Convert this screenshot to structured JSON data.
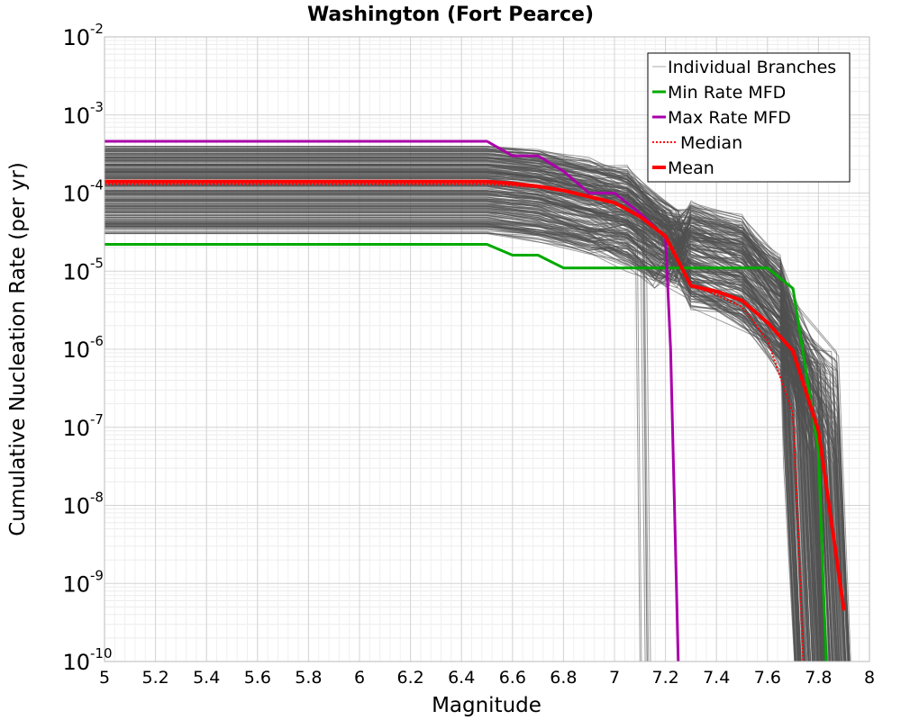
{
  "chart_data": {
    "type": "line",
    "title": "Washington (Fort Pearce)",
    "xlabel": "Magnitude",
    "ylabel": "Cumulative Nucleation Rate (per yr)",
    "xlim": [
      5,
      8
    ],
    "ylim": [
      1e-10,
      0.01
    ],
    "y_scale": "log",
    "grid": true,
    "legend_position": "top-right",
    "x_ticks": [
      "5",
      "5.2",
      "5.4",
      "5.6",
      "5.8",
      "6",
      "6.2",
      "6.4",
      "6.6",
      "6.8",
      "7",
      "7.2",
      "7.4",
      "7.6",
      "7.8",
      "8"
    ],
    "y_ticks": [
      {
        "base": "10",
        "exp": "-2",
        "value": 0.01
      },
      {
        "base": "10",
        "exp": "-3",
        "value": 0.001
      },
      {
        "base": "10",
        "exp": "-4",
        "value": 0.0001
      },
      {
        "base": "10",
        "exp": "-5",
        "value": 1e-05
      },
      {
        "base": "10",
        "exp": "-6",
        "value": 1e-06
      },
      {
        "base": "10",
        "exp": "-7",
        "value": 1e-07
      },
      {
        "base": "10",
        "exp": "-8",
        "value": 1e-08
      },
      {
        "base": "10",
        "exp": "-9",
        "value": 1e-09
      },
      {
        "base": "10",
        "exp": "-10",
        "value": 1e-10
      }
    ],
    "series": [
      {
        "name": "Min Rate MFD",
        "color": "#00aa00",
        "style": "solid",
        "x": [
          5.0,
          6.5,
          6.6,
          6.7,
          6.8,
          7.0,
          7.2,
          7.4,
          7.6,
          7.7,
          7.8,
          7.83
        ],
        "y": [
          2.2e-05,
          2.2e-05,
          1.6e-05,
          1.6e-05,
          1.1e-05,
          1.1e-05,
          1.1e-05,
          1.1e-05,
          1.1e-05,
          6e-06,
          5e-08,
          1e-10
        ]
      },
      {
        "name": "Max Rate MFD",
        "color": "#aa00aa",
        "style": "solid",
        "x": [
          5.0,
          6.5,
          6.6,
          6.7,
          6.8,
          6.9,
          7.0,
          7.1,
          7.2,
          7.22,
          7.25
        ],
        "y": [
          0.00046,
          0.00046,
          0.0003,
          0.0003,
          0.00019,
          0.0001,
          0.0001,
          5.5e-05,
          2.7e-05,
          1e-06,
          1e-10
        ]
      },
      {
        "name": "Median",
        "color": "#ff0000",
        "style": "dotted",
        "x": [
          5.0,
          6.5,
          6.6,
          6.7,
          6.8,
          6.9,
          7.0,
          7.1,
          7.2,
          7.3,
          7.4,
          7.5,
          7.6,
          7.7,
          7.72,
          7.74
        ],
        "y": [
          0.00013,
          0.00013,
          0.000125,
          0.000118,
          0.000107,
          9e-05,
          7.5e-05,
          5e-05,
          2.7e-05,
          6.5e-06,
          5e-06,
          3.5e-06,
          1.3e-06,
          1.5e-07,
          5e-09,
          1e-10
        ]
      },
      {
        "name": "Mean",
        "color": "#ff0000",
        "style": "solid",
        "x": [
          5.0,
          6.5,
          6.6,
          6.7,
          6.8,
          6.9,
          7.0,
          7.1,
          7.2,
          7.3,
          7.4,
          7.5,
          7.6,
          7.7,
          7.8,
          7.9
        ],
        "y": [
          0.00014,
          0.00014,
          0.000133,
          0.000122,
          0.000108,
          9e-05,
          7.5e-05,
          5e-05,
          2.8e-05,
          6.5e-06,
          5.5e-06,
          4.2e-06,
          2.2e-06,
          9.5e-07,
          9e-08,
          4.5e-10
        ]
      }
    ],
    "legend": [
      {
        "name": "Individual Branches",
        "color": "#aaaaaa",
        "style": "thin"
      },
      {
        "name": "Min Rate MFD",
        "color": "#00aa00",
        "style": "solid"
      },
      {
        "name": "Max Rate MFD",
        "color": "#aa00aa",
        "style": "solid"
      },
      {
        "name": "Median",
        "color": "#ff0000",
        "style": "dotted"
      },
      {
        "name": "Mean",
        "color": "#ff0000",
        "style": "solid"
      }
    ],
    "branches": {
      "name": "Individual Branches",
      "color": "#505050",
      "y_range_at_m5": [
        3e-05,
        0.0004
      ]
    }
  }
}
